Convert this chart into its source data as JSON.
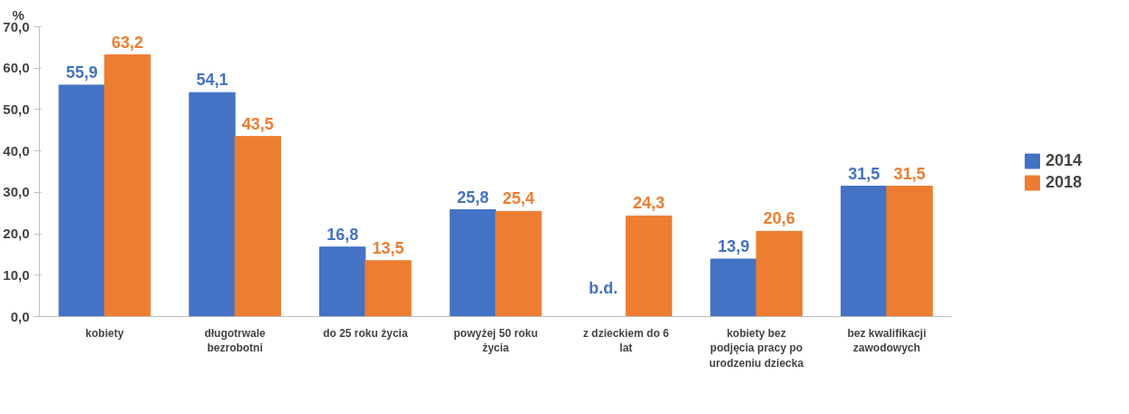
{
  "chart_data": {
    "type": "bar",
    "ylabel": "%",
    "categories": [
      "kobiety",
      "długotrwale bezrobotni",
      "do 25 roku życia",
      "powyżej 50 roku życia",
      "z dzieckiem do 6 lat",
      "kobiety bez podjęcia pracy po urodzeniu dziecka",
      "bez kwalifikacji zawodowych"
    ],
    "series": [
      {
        "name": "2014",
        "color": "#4472c4",
        "values": [
          55.9,
          54.1,
          16.8,
          25.8,
          null,
          13.9,
          31.5
        ],
        "value_labels": [
          "55,9",
          "54,1",
          "16,8",
          "25,8",
          "b.d.",
          "13,9",
          "31,5"
        ]
      },
      {
        "name": "2018",
        "color": "#ed7d31",
        "values": [
          63.2,
          43.5,
          13.5,
          25.4,
          24.3,
          20.6,
          31.5
        ],
        "value_labels": [
          "63,2",
          "43,5",
          "13,5",
          "25,4",
          "24,3",
          "20,6",
          "31,5"
        ]
      }
    ],
    "ylim": [
      0,
      70
    ],
    "yticks": [
      {
        "value": 0,
        "label": "0,0"
      },
      {
        "value": 10,
        "label": "10,0"
      },
      {
        "value": 20,
        "label": "20,0"
      },
      {
        "value": 30,
        "label": "30,0"
      },
      {
        "value": 40,
        "label": "40,0"
      },
      {
        "value": 50,
        "label": "50,0"
      },
      {
        "value": 60,
        "label": "60,0"
      },
      {
        "value": 70,
        "label": "70,0"
      }
    ],
    "grid": false,
    "legend": "right"
  }
}
